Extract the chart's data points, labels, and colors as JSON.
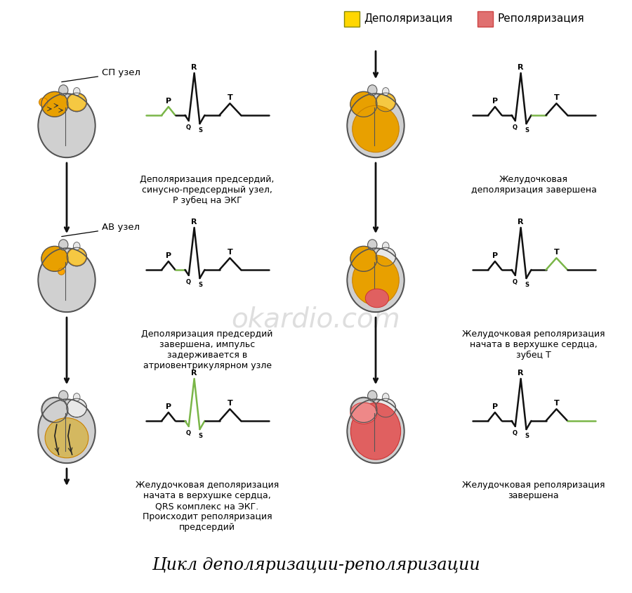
{
  "title": "Цикл деполяризации-реполяризации",
  "title_fontsize": 17,
  "background_color": "#ffffff",
  "legend_depol_color": "#FFD700",
  "legend_repol_color": "#E07070",
  "legend_depol_label": "Деполяризация",
  "legend_repol_label": "Реполяризация",
  "watermark": "okardio.com",
  "watermark_color": "#c8c8c8",
  "ecg_highlight_color": "#7ab648",
  "ecg_black": "#111111",
  "arrow_color": "#111111",
  "panels": [
    {
      "id": "L0",
      "row": 0,
      "col": 0,
      "label": "СП узел",
      "desc_lines": [
        "Деполяризация предсердий,",
        "синусно-предсердный узел,",
        "Р зубец на ЭКГ"
      ],
      "heart_style": "atria_depol",
      "ecg_highlight": "P"
    },
    {
      "id": "R0",
      "row": 0,
      "col": 1,
      "label": "",
      "desc_lines": [
        "Желудочковая",
        "деполяризация завершена"
      ],
      "heart_style": "ventricle_full_depol",
      "ecg_highlight": "ST"
    },
    {
      "id": "L1",
      "row": 1,
      "col": 0,
      "label": "АВ узел",
      "desc_lines": [
        "Деполяризация предсердий",
        "завершена, импульс",
        "задерживается в",
        "атриовентрикулярном узле"
      ],
      "heart_style": "av_delay",
      "ecg_highlight": "PQ"
    },
    {
      "id": "R1",
      "row": 1,
      "col": 1,
      "label": "",
      "desc_lines": [
        "Желудочковая реполяризация",
        "начата в верхушке сердца,",
        "зубец Т"
      ],
      "heart_style": "ventricle_partial_repol",
      "ecg_highlight": "T"
    },
    {
      "id": "L2",
      "row": 2,
      "col": 0,
      "label": "",
      "desc_lines": [
        "Желудочковая деполяризация",
        "начата в верхушке сердца,",
        "QRS комплекс на ЭКГ.",
        "Происходит реполяризация",
        "предсердий"
      ],
      "heart_style": "ventricle_depol_start",
      "ecg_highlight": "QRS"
    },
    {
      "id": "R2",
      "row": 2,
      "col": 1,
      "label": "",
      "desc_lines": [
        "Желудочковая реполяризация",
        "завершена"
      ],
      "heart_style": "ventricle_full_repol",
      "ecg_highlight": "baseline_r"
    }
  ]
}
